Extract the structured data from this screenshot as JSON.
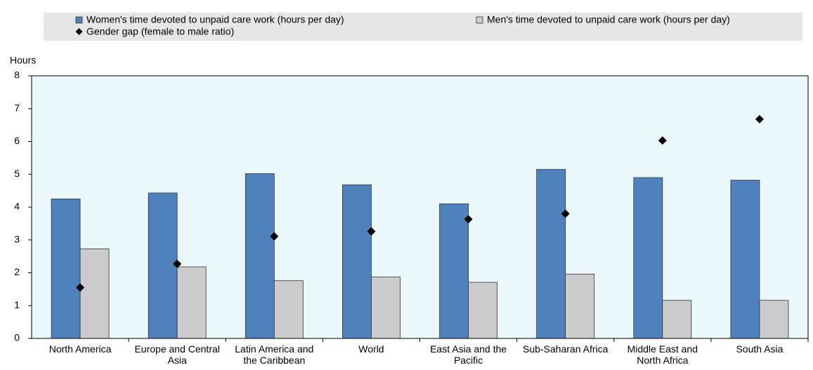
{
  "chart_data": {
    "type": "bar",
    "y_axis_label": "Hours",
    "categories": [
      "North America",
      "Europe and Central Asia",
      "Latin America and the Caribbean",
      "World",
      "East Asia and the Pacific",
      "Sub-Saharan Africa",
      "Middle East and North Africa",
      "South Asia"
    ],
    "series": [
      {
        "name": "Women's time devoted to unpaid care work (hours per day)",
        "type": "bar",
        "color": "#4f81bd",
        "values": [
          4.25,
          4.43,
          5.02,
          4.68,
          4.1,
          5.15,
          4.9,
          4.82
        ]
      },
      {
        "name": "Men's time devoted to unpaid care work (hours per day)",
        "type": "bar",
        "color": "#cccccc",
        "values": [
          2.73,
          2.18,
          1.76,
          1.87,
          1.71,
          1.96,
          1.16,
          1.16
        ]
      },
      {
        "name": "Gender gap (female to male ratio)",
        "type": "marker",
        "color": "#000000",
        "values": [
          1.55,
          2.27,
          3.11,
          3.26,
          3.63,
          3.8,
          6.03,
          6.68
        ]
      }
    ],
    "ylim": [
      0,
      8
    ],
    "yticks": [
      0,
      1,
      2,
      3,
      4,
      5,
      6,
      7,
      8
    ],
    "plot_background": "#eaf8fb"
  }
}
